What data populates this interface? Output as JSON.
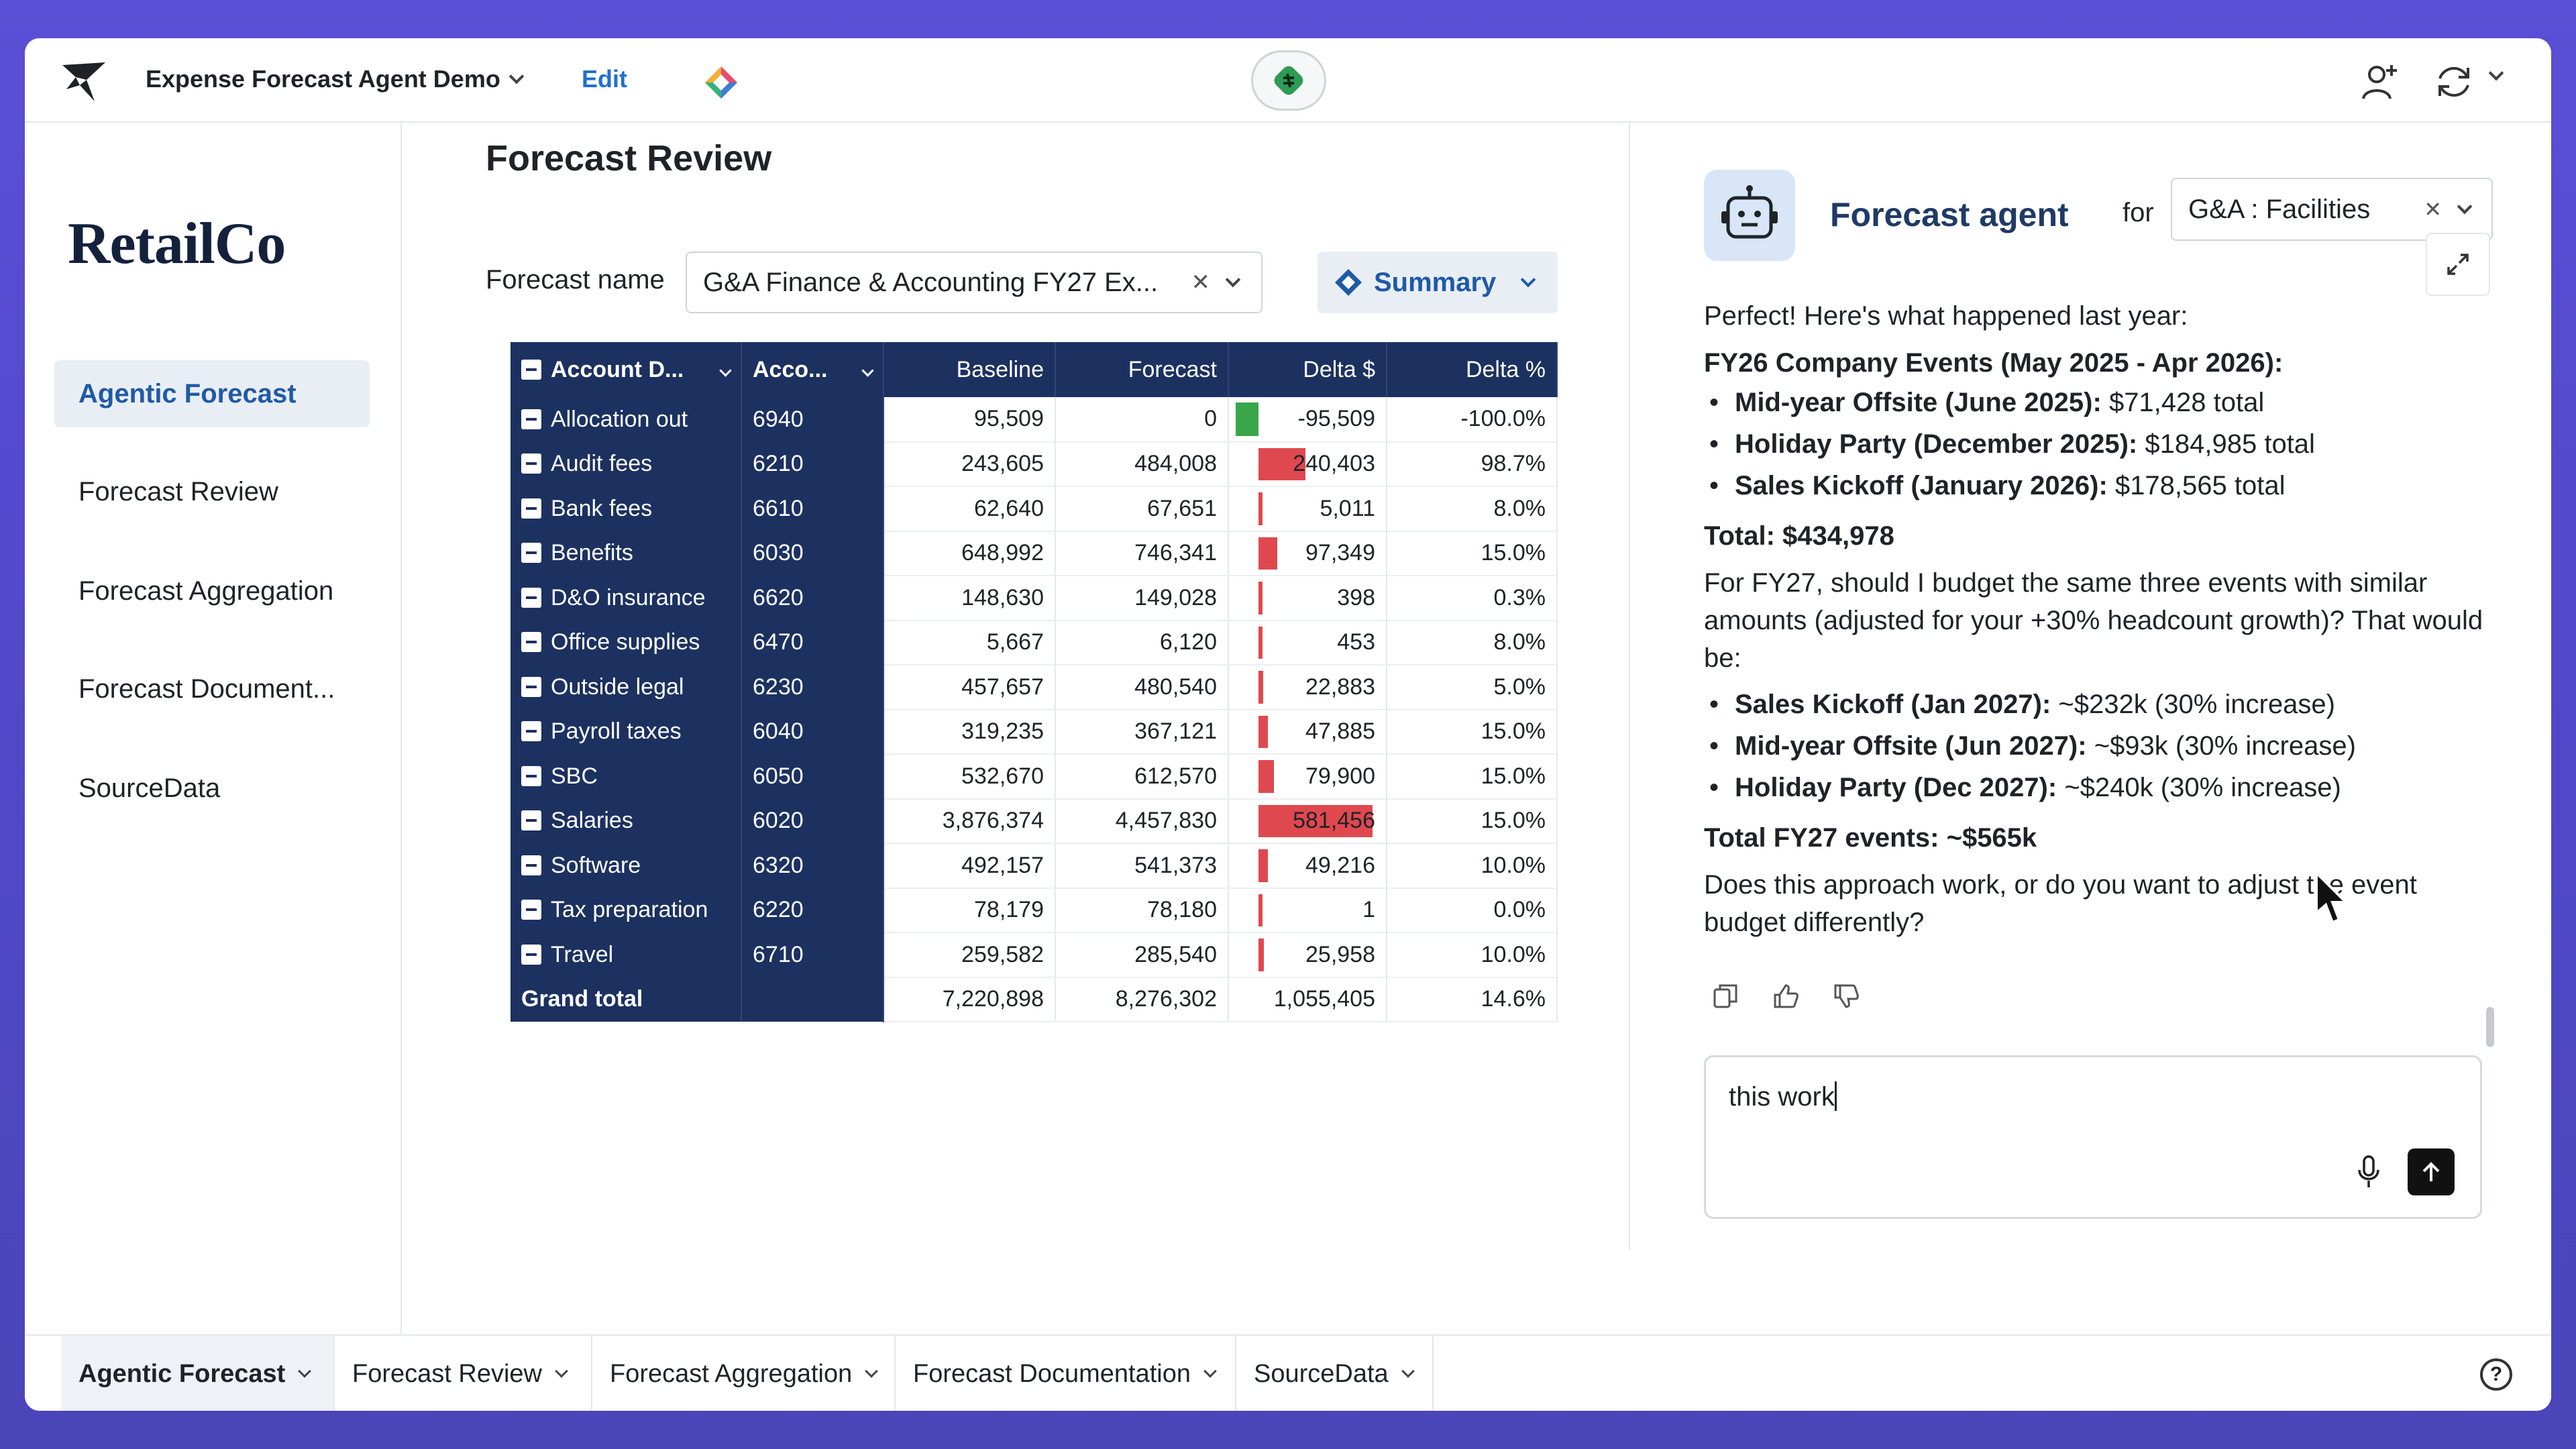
{
  "topbar": {
    "app_title": "Expense Forecast Agent Demo",
    "edit_label": "Edit",
    "icons": [
      "app-logo-icon",
      "diamond-icon",
      "agent-badge-icon",
      "add-user-icon",
      "refresh-icon"
    ]
  },
  "sidebar": {
    "brand": "RetailCo",
    "items": [
      {
        "label": "Agentic Forecast",
        "active": true
      },
      {
        "label": "Forecast Review",
        "active": false
      },
      {
        "label": "Forecast Aggregation",
        "active": false
      },
      {
        "label": "Forecast Document...",
        "active": false
      },
      {
        "label": "SourceData",
        "active": false
      }
    ]
  },
  "main": {
    "title": "Forecast Review",
    "forecast_name_label": "Forecast name",
    "forecast_name_value": "G&A Finance & Accounting FY27 Ex...",
    "summary_label": "Summary",
    "table": {
      "headers": [
        "Account D...",
        "Acco...",
        "Baseline",
        "Forecast",
        "Delta $",
        "Delta %"
      ],
      "rows": [
        {
          "name": "Allocation out",
          "code": "6940",
          "baseline": "95,509",
          "forecast": "0",
          "delta": "-95,509",
          "delta_value": -95509,
          "pct": "-100.0%"
        },
        {
          "name": "Audit fees",
          "code": "6210",
          "baseline": "243,605",
          "forecast": "484,008",
          "delta": "240,403",
          "delta_value": 240403,
          "pct": "98.7%"
        },
        {
          "name": "Bank fees",
          "code": "6610",
          "baseline": "62,640",
          "forecast": "67,651",
          "delta": "5,011",
          "delta_value": 5011,
          "pct": "8.0%"
        },
        {
          "name": "Benefits",
          "code": "6030",
          "baseline": "648,992",
          "forecast": "746,341",
          "delta": "97,349",
          "delta_value": 97349,
          "pct": "15.0%"
        },
        {
          "name": "D&O insurance",
          "code": "6620",
          "baseline": "148,630",
          "forecast": "149,028",
          "delta": "398",
          "delta_value": 398,
          "pct": "0.3%"
        },
        {
          "name": "Office supplies",
          "code": "6470",
          "baseline": "5,667",
          "forecast": "6,120",
          "delta": "453",
          "delta_value": 453,
          "pct": "8.0%"
        },
        {
          "name": "Outside legal",
          "code": "6230",
          "baseline": "457,657",
          "forecast": "480,540",
          "delta": "22,883",
          "delta_value": 22883,
          "pct": "5.0%"
        },
        {
          "name": "Payroll taxes",
          "code": "6040",
          "baseline": "319,235",
          "forecast": "367,121",
          "delta": "47,885",
          "delta_value": 47885,
          "pct": "15.0%"
        },
        {
          "name": "SBC",
          "code": "6050",
          "baseline": "532,670",
          "forecast": "612,570",
          "delta": "79,900",
          "delta_value": 79900,
          "pct": "15.0%"
        },
        {
          "name": "Salaries",
          "code": "6020",
          "baseline": "3,876,374",
          "forecast": "4,457,830",
          "delta": "581,456",
          "delta_value": 581456,
          "pct": "15.0%"
        },
        {
          "name": "Software",
          "code": "6320",
          "baseline": "492,157",
          "forecast": "541,373",
          "delta": "49,216",
          "delta_value": 49216,
          "pct": "10.0%"
        },
        {
          "name": "Tax preparation",
          "code": "6220",
          "baseline": "78,179",
          "forecast": "78,180",
          "delta": "1",
          "delta_value": 1,
          "pct": "0.0%"
        },
        {
          "name": "Travel",
          "code": "6710",
          "baseline": "259,582",
          "forecast": "285,540",
          "delta": "25,958",
          "delta_value": 25958,
          "pct": "10.0%"
        }
      ],
      "total": {
        "name": "Grand total",
        "code": "",
        "baseline": "7,220,898",
        "forecast": "8,276,302",
        "delta": "1,055,405",
        "pct": "14.6%"
      },
      "colors": {
        "positive_bar": "#e0484f",
        "negative_bar": "#3aa64a",
        "header_bg": "#1c3160"
      }
    }
  },
  "agent": {
    "title": "Forecast agent",
    "for_label": "for",
    "scope_value": "G&A : Facilities",
    "intro": "Perfect! Here's what happened last year:",
    "events_heading": "FY26 Company Events (May 2025 - Apr 2026):",
    "fy26_events": [
      {
        "name": "Mid-year Offsite (June 2025):",
        "value": " $71,428 total"
      },
      {
        "name": "Holiday Party (December 2025):",
        "value": " $184,985 total"
      },
      {
        "name": "Sales Kickoff (January 2026):",
        "value": " $178,565 total"
      }
    ],
    "total_fy26": "Total: $434,978",
    "question": "For FY27, should I budget the same three events with similar amounts (adjusted for your +30% headcount growth)? That would be:",
    "fy27_events": [
      {
        "name": "Sales Kickoff (Jan 2027):",
        "value": " ~$232k (30% increase)"
      },
      {
        "name": "Mid-year Offsite (Jun 2027):",
        "value": " ~$93k (30% increase)"
      },
      {
        "name": "Holiday Party (Dec 2027):",
        "value": " ~$240k (30% increase)"
      }
    ],
    "total_fy27": "Total FY27 events: ~$565k",
    "closing": "Does this approach work, or do you want to adjust the event budget differently?",
    "composer_value": "this work"
  },
  "bottom_tabs": [
    {
      "label": "Agentic Forecast",
      "active": true
    },
    {
      "label": "Forecast Review",
      "active": false
    },
    {
      "label": "Forecast Aggregation",
      "active": false
    },
    {
      "label": "Forecast Documentation",
      "active": false
    },
    {
      "label": "SourceData",
      "active": false
    }
  ]
}
